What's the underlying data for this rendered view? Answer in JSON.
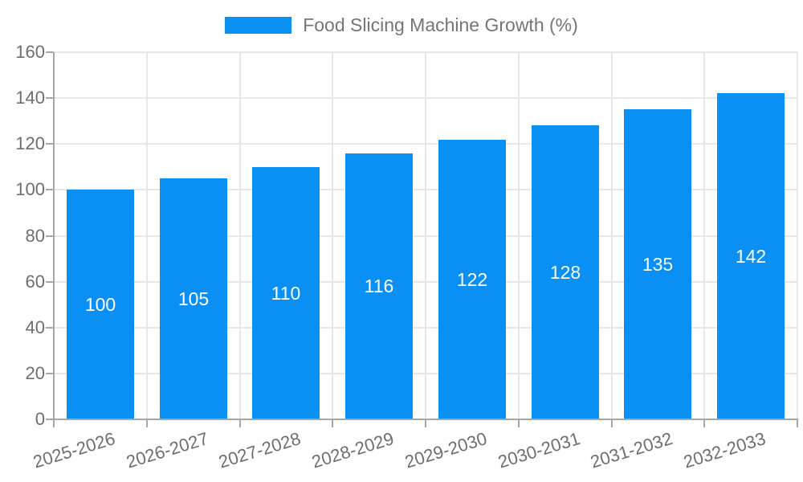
{
  "chart_data": {
    "type": "bar",
    "title": "",
    "legend": {
      "label": "Food Slicing Machine Growth (%)",
      "position": "top"
    },
    "categories": [
      "2025-2026",
      "2026-2027",
      "2027-2028",
      "2028-2029",
      "2029-2030",
      "2030-2031",
      "2031-2032",
      "2032-2033"
    ],
    "values": [
      100,
      105,
      110,
      116,
      122,
      128,
      135,
      142
    ],
    "xlabel": "",
    "ylabel": "",
    "ylim": [
      0,
      160
    ],
    "yticks": [
      0,
      20,
      40,
      60,
      80,
      100,
      120,
      140,
      160
    ],
    "grid": true,
    "bar_value_labels_inside": true,
    "x_label_rotation_deg": -17,
    "colors": {
      "bar": "#0a90f5",
      "grid": "#e7e7e7",
      "axis": "#a6a6a6",
      "tick_text": "#6e6e6e",
      "legend_text": "#757575",
      "bar_label_text": "#ffffff",
      "background": "#ffffff"
    }
  }
}
